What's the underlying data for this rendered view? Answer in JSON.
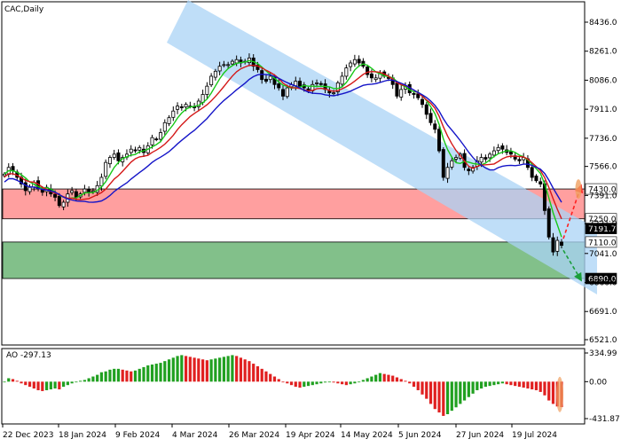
{
  "chart_data": [
    {
      "type": "candlestick",
      "title": "CAC,Daily",
      "ylim": [
        6521.0,
        8436.0
      ],
      "y_ticks": [
        "8436.0",
        "8261.0",
        "8086.0",
        "7911.0",
        "7736.0",
        "7566.0",
        "7391.0",
        "7221.0",
        "7041.0",
        "6866.0",
        "6691.0",
        "6521.0"
      ],
      "x_ticks": [
        "22 Dec 2023",
        "18 Jan 2024",
        "9 Feb 2024",
        "4 Mar 2024",
        "26 Mar 2024",
        "19 Apr 2024",
        "14 May 2024",
        "5 Jun 2024",
        "27 Jun 2024",
        "19 Jul 2024"
      ],
      "price_levels": [
        {
          "label": "7430.0",
          "value": 7430.0,
          "box": "#ffffff",
          "fg": "#000000"
        },
        {
          "label": "7250.0",
          "value": 7250.0,
          "box": "#ffffff",
          "fg": "#000000"
        },
        {
          "label": "7191.7",
          "value": 7191.7,
          "box": "#000000",
          "fg": "#ffffff"
        },
        {
          "label": "7110.0",
          "value": 7110.0,
          "box": "#ffffff",
          "fg": "#000000"
        },
        {
          "label": "6890.0",
          "value": 6890.0,
          "box": "#000000",
          "fg": "#ffffff"
        }
      ],
      "zones": [
        {
          "name": "resistance",
          "from": 7250.0,
          "to": 7430.0,
          "color": "#ff9f9f"
        },
        {
          "name": "support",
          "from": 6890.0,
          "to": 7110.0,
          "color": "#82c08a"
        }
      ],
      "channel_color": "#a9d3f5",
      "close": [
        7520,
        7560,
        7540,
        7500,
        7460,
        7420,
        7440,
        7470,
        7430,
        7410,
        7440,
        7400,
        7380,
        7330,
        7350,
        7400,
        7420,
        7380,
        7400,
        7430,
        7410,
        7420,
        7450,
        7500,
        7590,
        7620,
        7640,
        7600,
        7620,
        7640,
        7670,
        7660,
        7680,
        7650,
        7690,
        7740,
        7730,
        7770,
        7830,
        7860,
        7900,
        7930,
        7920,
        7940,
        7930,
        7920,
        7960,
        8000,
        8050,
        8110,
        8140,
        8170,
        8180,
        8180,
        8200,
        8210,
        8190,
        8200,
        8220,
        8170,
        8150,
        8090,
        8080,
        8110,
        8060,
        8040,
        7990,
        8040,
        8060,
        8080,
        8050,
        8040,
        8020,
        8060,
        8070,
        8060,
        8030,
        8010,
        8010,
        8070,
        8110,
        8160,
        8190,
        8210,
        8190,
        8170,
        8120,
        8100,
        8100,
        8130,
        8110,
        8100,
        8060,
        7990,
        8030,
        8050,
        8010,
        8000,
        7980,
        7940,
        7880,
        7830,
        7790,
        7660,
        7500,
        7560,
        7600,
        7620,
        7640,
        7560,
        7540,
        7560,
        7600,
        7620,
        7610,
        7640,
        7660,
        7680,
        7670,
        7650,
        7640,
        7610,
        7600,
        7620,
        7560,
        7500,
        7480,
        7460,
        7300,
        7140,
        7050,
        7120,
        7090
      ],
      "color_up": "#000000",
      "color_down": "#000000",
      "moving_averages": [
        {
          "color": "#18c818",
          "period": 5
        },
        {
          "color": "#d41818",
          "period": 8
        },
        {
          "color": "#1414c8",
          "period": 13
        }
      ],
      "forecast_up": {
        "target": 7450.0,
        "color": "#ff2020"
      },
      "forecast_down": {
        "target": 6880.0,
        "color": "#1a9e3a"
      }
    },
    {
      "type": "bar",
      "title": "AO -297.13",
      "indicator": "Awesome Oscillator",
      "ylim": [
        -431.87,
        334.99
      ],
      "y_ticks": [
        "334.99",
        "0.00",
        "-431.87"
      ],
      "color_up": "#20a020",
      "color_down": "#e02020",
      "values": [
        0,
        40,
        30,
        10,
        -20,
        -40,
        -60,
        -80,
        -100,
        -110,
        -100,
        -90,
        -80,
        -90,
        -60,
        -40,
        -20,
        0,
        10,
        20,
        40,
        60,
        80,
        110,
        120,
        140,
        150,
        150,
        140,
        130,
        120,
        130,
        150,
        170,
        190,
        200,
        210,
        220,
        240,
        260,
        280,
        300,
        310,
        300,
        290,
        280,
        270,
        260,
        250,
        260,
        270,
        280,
        290,
        300,
        310,
        300,
        280,
        260,
        240,
        210,
        180,
        150,
        120,
        90,
        60,
        30,
        0,
        -20,
        -40,
        -60,
        -70,
        -60,
        -50,
        -40,
        -30,
        -20,
        -10,
        0,
        -10,
        -20,
        -30,
        -40,
        -30,
        -20,
        0,
        20,
        40,
        60,
        80,
        100,
        90,
        80,
        70,
        50,
        30,
        10,
        -20,
        -60,
        -100,
        -150,
        -200,
        -260,
        -320,
        -360,
        -400,
        -380,
        -340,
        -300,
        -260,
        -220,
        -180,
        -140,
        -100,
        -80,
        -60,
        -50,
        -40,
        -30,
        -20,
        -30,
        -40,
        -50,
        -60,
        -70,
        -80,
        -90,
        -100,
        -120,
        -160,
        -220,
        -260,
        -290,
        -297
      ]
    }
  ]
}
